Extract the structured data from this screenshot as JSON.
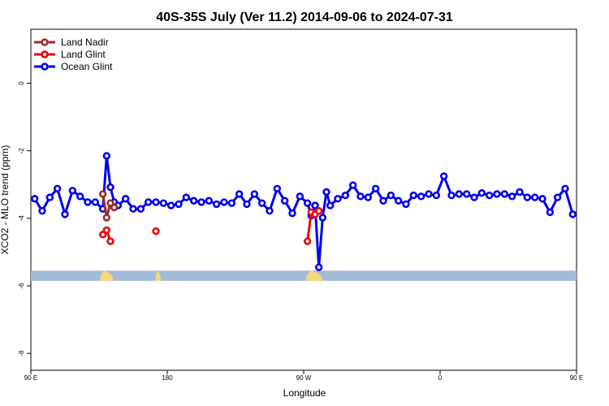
{
  "chart_data": {
    "type": "line",
    "title": "40S-35S July (Ver 11.2)   2014-09-06 to 2024-07-31",
    "xlabel": "Longitude",
    "ylabel": "XCO2 - MLO trend (ppm)",
    "xlim": [
      0,
      360
    ],
    "ylim": [
      -8.5,
      1.6
    ],
    "x_ticks": [
      {
        "value": 0,
        "label": "90 E"
      },
      {
        "value": 90,
        "label": "180"
      },
      {
        "value": 180,
        "label": "90 W"
      },
      {
        "value": 270,
        "label": "0"
      },
      {
        "value": 360,
        "label": "90 E"
      },
      {
        "value": 450,
        "label": "180"
      }
    ],
    "y_ticks": [
      0,
      -2,
      -4,
      -6,
      -8
    ],
    "legend_position": "top-left",
    "land_band": {
      "y_top": -5.55,
      "y_bottom": -5.85,
      "color": "#a2bbd9",
      "land_color": "#f7d77e"
    },
    "series": [
      {
        "name": "Land Nadir",
        "color": "#9e2a2b",
        "x": [
          47.5,
          50.0,
          52.5,
          55.0
        ],
        "y": [
          -3.28,
          -3.98,
          -3.55,
          -3.68
        ]
      },
      {
        "name": "Land Glint",
        "color": "#ee0000",
        "x": [
          47.5,
          50.0,
          52.5,
          null,
          82.5,
          null,
          182.5,
          185.0,
          187.5,
          190.0
        ],
        "y": [
          -4.48,
          -4.35,
          -4.68,
          null,
          -4.38,
          null,
          -4.68,
          -3.82,
          -3.88,
          -3.78
        ]
      },
      {
        "name": "Ocean Glint",
        "color": "#0000ee",
        "x": [
          2.5,
          7.5,
          12.5,
          17.5,
          22.5,
          27.5,
          32.5,
          37.5,
          42.5,
          47.5,
          50.0,
          52.5,
          55.0,
          57.5,
          62.5,
          67.5,
          72.5,
          77.5,
          82.5,
          87.5,
          92.5,
          97.5,
          102.5,
          107.5,
          112.5,
          117.5,
          122.5,
          127.5,
          132.5,
          137.5,
          142.5,
          147.5,
          152.5,
          157.5,
          162.5,
          167.5,
          172.5,
          177.5,
          182.5,
          185.0,
          187.5,
          190.0,
          192.5,
          195.0,
          197.5,
          202.5,
          207.5,
          212.5,
          217.5,
          222.5,
          227.5,
          232.5,
          237.5,
          242.5,
          247.5,
          252.5,
          257.5,
          262.5,
          267.5,
          272.5,
          277.5,
          282.5,
          287.5,
          292.5,
          297.5,
          302.5,
          307.5,
          312.5,
          317.5,
          322.5,
          327.5,
          332.5,
          337.5,
          342.5,
          347.5,
          352.5,
          357.5
        ],
        "y": [
          -3.42,
          -3.78,
          -3.38,
          -3.12,
          -3.88,
          -3.18,
          -3.35,
          -3.52,
          -3.52,
          -3.72,
          -2.15,
          -3.08,
          -3.52,
          -3.62,
          -3.42,
          -3.72,
          -3.72,
          -3.52,
          -3.52,
          -3.55,
          -3.62,
          -3.58,
          -3.38,
          -3.48,
          -3.52,
          -3.48,
          -3.58,
          -3.52,
          -3.55,
          -3.28,
          -3.58,
          -3.28,
          -3.55,
          -3.78,
          -3.12,
          -3.48,
          -3.85,
          -3.35,
          -3.55,
          -3.92,
          -3.62,
          -5.45,
          -3.98,
          -3.22,
          -3.62,
          -3.42,
          -3.32,
          -3.02,
          -3.35,
          -3.38,
          -3.12,
          -3.48,
          -3.32,
          -3.48,
          -3.58,
          -3.32,
          -3.35,
          -3.28,
          -3.32,
          -2.75,
          -3.32,
          -3.28,
          -3.28,
          -3.38,
          -3.25,
          -3.32,
          -3.28,
          -3.28,
          -3.35,
          -3.22,
          -3.38,
          -3.38,
          -3.42,
          -3.82,
          -3.38,
          -3.12,
          -3.88
        ]
      }
    ]
  }
}
